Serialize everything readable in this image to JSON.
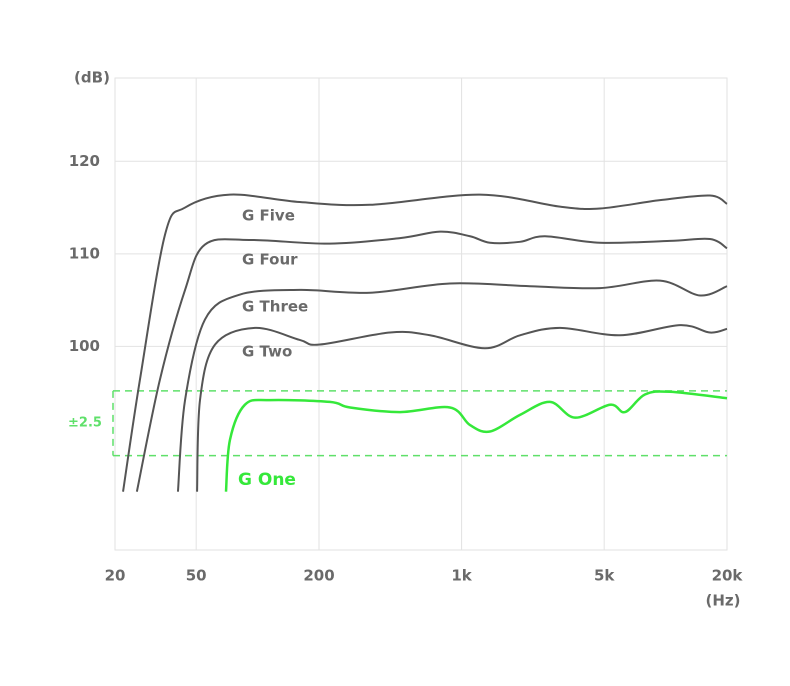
{
  "chart_data": {
    "type": "line",
    "y_label": "(dB)",
    "x_label": "(Hz)",
    "xlim": [
      20,
      20000
    ],
    "x_log": true,
    "xticks": [
      20,
      50,
      200,
      {
        "value": 1000,
        "label": "1k"
      },
      {
        "value": 5000,
        "label": "5k"
      },
      {
        "value": 20000,
        "label": "20k"
      }
    ],
    "ylim": [
      78,
      129
    ],
    "yticks": [
      100,
      110,
      120
    ],
    "grid": true,
    "band": [
      88.2,
      95.2
    ],
    "band_label": "±2.5",
    "band_color": "#5fe06a",
    "series": [
      {
        "name": "G Five",
        "color": "#555555",
        "x": [
          21.9,
          26.5,
          35.2,
          44.1,
          73.2,
          161,
          356,
          1230,
          3035,
          4770,
          9390,
          16500,
          20000
        ],
        "values": [
          84.3,
          96.4,
          112.1,
          115.0,
          116.4,
          115.6,
          115.3,
          116.4,
          115.1,
          114.9,
          115.8,
          116.3,
          115.4
        ]
      },
      {
        "name": "G Four",
        "color": "#555555",
        "x": [
          25.6,
          33.2,
          44.1,
          55.2,
          91.8,
          226,
          499,
          784,
          1100,
          1378,
          1934,
          2565,
          4770,
          10500,
          16500,
          20000
        ],
        "values": [
          84.3,
          96.4,
          106.1,
          111.0,
          111.5,
          111.1,
          111.7,
          112.4,
          111.9,
          111.2,
          111.3,
          111.9,
          111.2,
          111.4,
          111.6,
          110.6
        ]
      },
      {
        "name": "G Three",
        "color": "#555555",
        "x": [
          40.7,
          44.1,
          55.2,
          82,
          161,
          356,
          877,
          2165,
          4770,
          9390,
          14750,
          20000
        ],
        "values": [
          84.3,
          94.2,
          102.9,
          105.6,
          106.1,
          105.8,
          106.8,
          106.5,
          106.3,
          107.1,
          105.5,
          106.5
        ]
      },
      {
        "name": "G Two",
        "color": "#555555",
        "x": [
          50.5,
          52.2,
          61.9,
          97.1,
          161,
          202,
          446,
          700,
          1302,
          1934,
          3035,
          5975,
          11770,
          16500,
          20000
        ],
        "values": [
          84.3,
          94.2,
          100.2,
          102.0,
          100.7,
          100.2,
          101.5,
          101.2,
          99.8,
          101.2,
          102.0,
          101.2,
          102.3,
          101.5,
          101.9
        ]
      },
      {
        "name": "G One",
        "color": "#35e83a",
        "x": [
          70,
          73.2,
          86.7,
          115,
          226,
          284,
          499,
          877,
          1100,
          1378,
          1934,
          2710,
          3600,
          5340,
          6325,
          7920,
          10500,
          20000
        ],
        "values": [
          84.3,
          89.9,
          93.7,
          94.2,
          94.0,
          93.4,
          92.9,
          93.4,
          91.5,
          90.8,
          92.6,
          94.0,
          92.3,
          93.7,
          92.9,
          94.8,
          95.1,
          94.4
        ]
      }
    ]
  }
}
